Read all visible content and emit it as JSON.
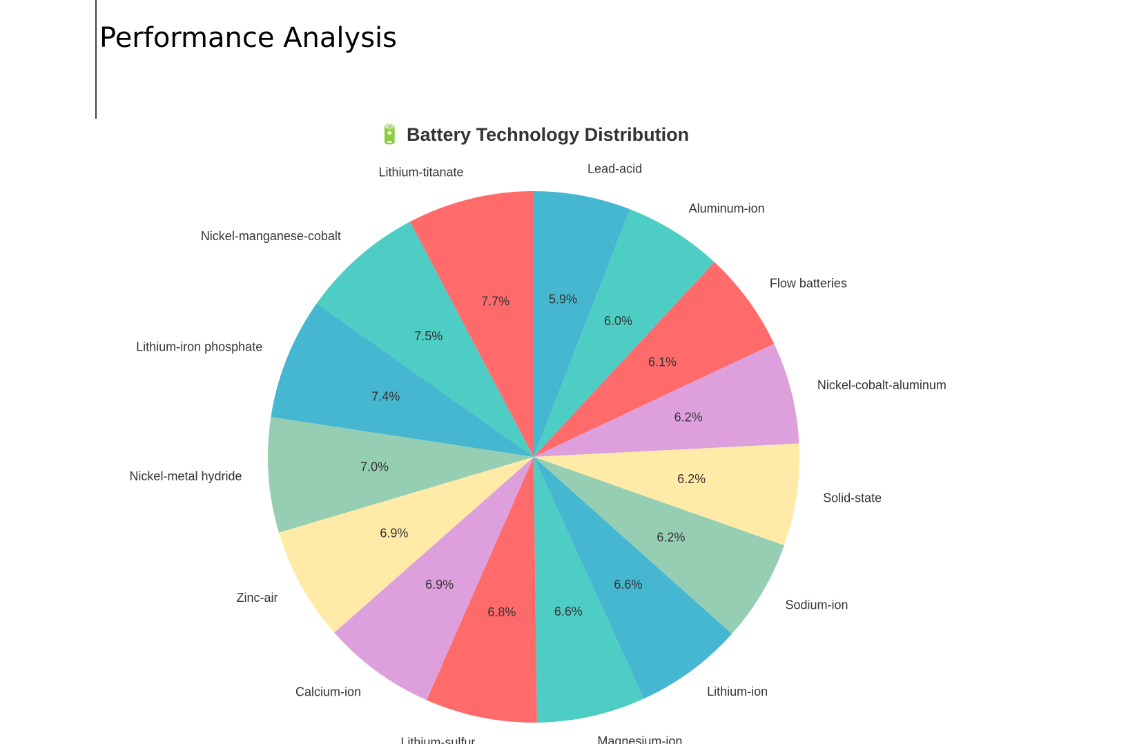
{
  "heading": "Performance Analysis",
  "chart_data": {
    "type": "pie",
    "title": "🔋 Battery Technology Distribution",
    "categories": [
      "Lead-acid",
      "Aluminum-ion",
      "Flow batteries",
      "Nickel-cobalt-aluminum",
      "Solid-state",
      "Sodium-ion",
      "Lithium-ion",
      "Magnesium-ion",
      "Lithium-sulfur",
      "Calcium-ion",
      "Zinc-air",
      "Nickel-metal hydride",
      "Lithium-iron phosphate",
      "Nickel-manganese-cobalt",
      "Lithium-titanate"
    ],
    "values": [
      5.9,
      6.0,
      6.1,
      6.2,
      6.2,
      6.2,
      6.6,
      6.6,
      6.8,
      6.9,
      6.9,
      7.0,
      7.4,
      7.5,
      7.7
    ],
    "value_labels": [
      "5.9%",
      "6.0%",
      "6.1%",
      "6.2%",
      "6.2%",
      "6.2%",
      "6.6%",
      "6.6%",
      "6.8%",
      "6.9%",
      "6.9%",
      "7.0%",
      "7.4%",
      "7.5%",
      "7.7%"
    ],
    "colors": [
      "#45b7d1",
      "#4ecdc4",
      "#ff6b6b",
      "#dda0dd",
      "#ffeaa7",
      "#96ceb4"
    ],
    "start_angle": 90,
    "direction": "clockwise"
  }
}
